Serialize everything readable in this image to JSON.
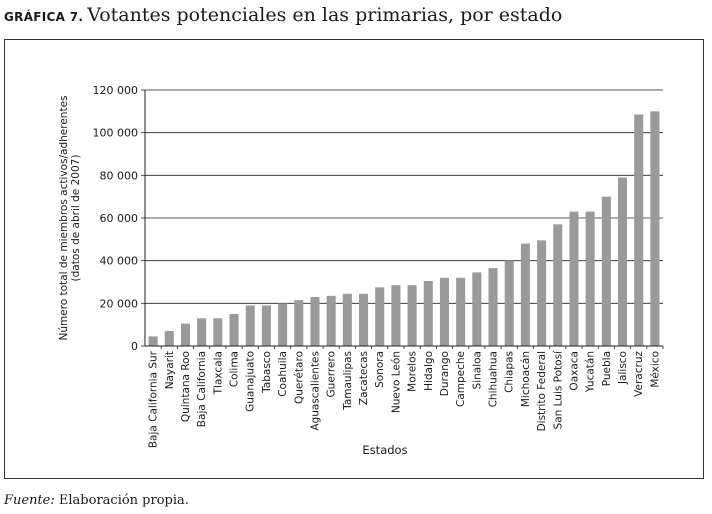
{
  "figure": {
    "label": "GRÁFICA 7.",
    "title": "Votantes potenciales en las primarias, por estado"
  },
  "footnote": {
    "source_label": "Fuente:",
    "source_text": " Elaboración propia."
  },
  "chart_data": {
    "type": "bar",
    "title": "Votantes potenciales en las primarias, por estado",
    "xlabel": "Estados",
    "ylabel": "Número total de miembros activos/adherentes (datos de abril de 2007)",
    "ylabel_lines": [
      "Número total de miembros activos/adherentes",
      "(datos de abril de 2007)"
    ],
    "ylim": [
      0,
      120000
    ],
    "yticks": [
      0,
      20000,
      40000,
      60000,
      80000,
      100000,
      120000
    ],
    "ytick_labels": [
      "0",
      "20 000",
      "40 000",
      "60 000",
      "80 000",
      "100 000",
      "120 000"
    ],
    "bar_color": "#9a9a9a",
    "categories": [
      "Baja California Sur",
      "Nayarit",
      "Quintana Roo",
      "Baja California",
      "Tlaxcala",
      "Colima",
      "Guanajuato",
      "Tabasco",
      "Coahuila",
      "Querétaro",
      "Aguascalientes",
      "Guerrero",
      "Tamaulipas",
      "Zacatecas",
      "Sonora",
      "Nuevo León",
      "Morelos",
      "Hidalgo",
      "Durango",
      "Campeche",
      "Sinaloa",
      "Chihuahua",
      "Chiapas",
      "Michoacán",
      "Distrito Federal",
      "San Luis Potosí",
      "Oaxaca",
      "Yucatán",
      "Puebla",
      "Jalisco",
      "Veracruz",
      "México"
    ],
    "values": [
      4500,
      7000,
      10500,
      13000,
      13000,
      15000,
      19000,
      19000,
      20000,
      21500,
      23000,
      23500,
      24500,
      24500,
      27500,
      28500,
      28500,
      30500,
      32000,
      32000,
      34500,
      36500,
      40000,
      48000,
      49500,
      57000,
      63000,
      63000,
      70000,
      79000,
      108500,
      110000
    ]
  }
}
